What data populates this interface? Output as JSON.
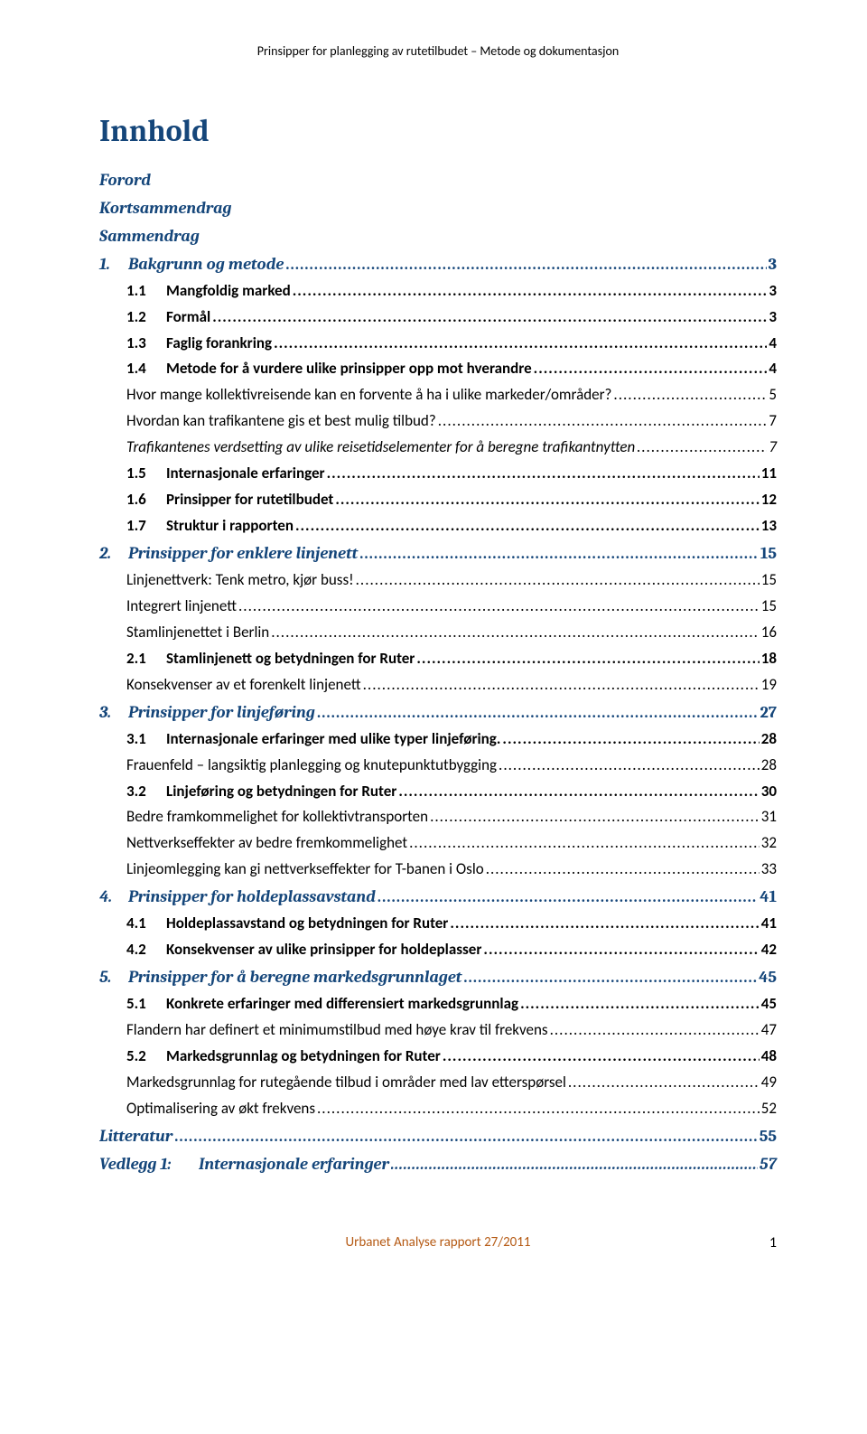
{
  "header": "Prinsipper for planlegging av rutetilbudet – Metode og dokumentasjon",
  "title": "Innhold",
  "front": [
    "Forord",
    "Kortsammendrag",
    "Sammendrag"
  ],
  "toc": [
    {
      "level": "chapter",
      "num": "1.",
      "label": "Bakgrunn og metode",
      "page": "3"
    },
    {
      "level": "section",
      "num": "1.1",
      "label": "Mangfoldig marked",
      "page": "3"
    },
    {
      "level": "section",
      "num": "1.2",
      "label": "Formål",
      "page": "3"
    },
    {
      "level": "section",
      "num": "1.3",
      "label": "Faglig forankring",
      "page": "4"
    },
    {
      "level": "section",
      "num": "1.4",
      "label": "Metode for å vurdere ulike prinsipper opp mot hverandre",
      "page": "4"
    },
    {
      "level": "question",
      "num": "",
      "label": "Hvor mange kollektivreisende kan en forvente å ha i ulike markeder/områder?",
      "page": "5"
    },
    {
      "level": "question",
      "num": "",
      "label": "Hvordan kan trafikantene gis et best mulig tilbud?",
      "page": "7"
    },
    {
      "level": "sub-italic",
      "num": "",
      "label": "Trafikantenes verdsetting av ulike reisetidselementer for å beregne trafikantnytten",
      "page": "7"
    },
    {
      "level": "section",
      "num": "1.5",
      "label": "Internasjonale erfaringer",
      "page": "11"
    },
    {
      "level": "section",
      "num": "1.6",
      "label": "Prinsipper for rutetilbudet",
      "page": "12"
    },
    {
      "level": "section",
      "num": "1.7",
      "label": "Struktur i rapporten",
      "page": "13"
    },
    {
      "level": "chapter",
      "num": "2.",
      "label": "Prinsipper for enklere linjenett",
      "page": "15"
    },
    {
      "level": "sub",
      "num": "",
      "label": "Linjenettverk: Tenk metro, kjør buss!",
      "page": "15"
    },
    {
      "level": "sub",
      "num": "",
      "label": "Integrert linjenett",
      "page": "15"
    },
    {
      "level": "sub",
      "num": "",
      "label": "Stamlinjenettet i Berlin",
      "page": "16"
    },
    {
      "level": "section",
      "num": "2.1",
      "label": "Stamlinjenett og betydningen for Ruter",
      "page": "18"
    },
    {
      "level": "sub",
      "num": "",
      "label": "Konsekvenser av et forenkelt linjenett",
      "page": "19"
    },
    {
      "level": "chapter",
      "num": "3.",
      "label": "Prinsipper for linjeføring",
      "page": "27"
    },
    {
      "level": "section",
      "num": "3.1",
      "label": "Internasjonale erfaringer med ulike typer linjeføring.",
      "page": "28"
    },
    {
      "level": "sub",
      "num": "",
      "label": "Frauenfeld – langsiktig planlegging og knutepunktutbygging",
      "page": "28"
    },
    {
      "level": "section",
      "num": "3.2",
      "label": "Linjeføring og betydningen for Ruter",
      "page": "30"
    },
    {
      "level": "sub",
      "num": "",
      "label": "Bedre framkommelighet for kollektivtransporten",
      "page": "31"
    },
    {
      "level": "sub",
      "num": "",
      "label": "Nettverkseffekter av bedre fremkommelighet",
      "page": "32"
    },
    {
      "level": "sub",
      "num": "",
      "label": "Linjeomlegging kan gi nettverkseffekter for T-banen i Oslo",
      "page": "33"
    },
    {
      "level": "chapter",
      "num": "4.",
      "label": "Prinsipper for holdeplassavstand",
      "page": "41"
    },
    {
      "level": "section",
      "num": "4.1",
      "label": "Holdeplassavstand og betydningen for Ruter",
      "page": "41"
    },
    {
      "level": "section",
      "num": "4.2",
      "label": "Konsekvenser av ulike prinsipper for holdeplasser",
      "page": "42"
    },
    {
      "level": "chapter",
      "num": "5.",
      "label": "Prinsipper for å beregne markedsgrunnlaget",
      "page": "45"
    },
    {
      "level": "section",
      "num": "5.1",
      "label": "Konkrete erfaringer med differensiert markedsgrunnlag",
      "page": "45"
    },
    {
      "level": "sub",
      "num": "",
      "label": "Flandern har definert et minimumstilbud med høye krav til frekvens",
      "page": "47"
    },
    {
      "level": "section",
      "num": "5.2",
      "label": "Markedsgrunnlag og betydningen for Ruter",
      "page": "48"
    },
    {
      "level": "sub",
      "num": "",
      "label": "Markedsgrunnlag for rutegående tilbud i områder med lav etterspørsel",
      "page": "49"
    },
    {
      "level": "sub",
      "num": "",
      "label": "Optimalisering av økt frekvens",
      "page": "52"
    },
    {
      "level": "chapter",
      "num": "",
      "label": "Litteratur",
      "page": "55",
      "nonum": true
    },
    {
      "level": "appendix",
      "num": "Vedlegg 1:",
      "label": "Internasjonale erfaringer",
      "page": "57"
    }
  ],
  "footer": {
    "center": "Urbanet Analyse rapport 27/2011",
    "page": "1"
  },
  "colors": {
    "heading": "#15467a",
    "footer": "#b55a14",
    "text": "#000000",
    "background": "#ffffff"
  }
}
